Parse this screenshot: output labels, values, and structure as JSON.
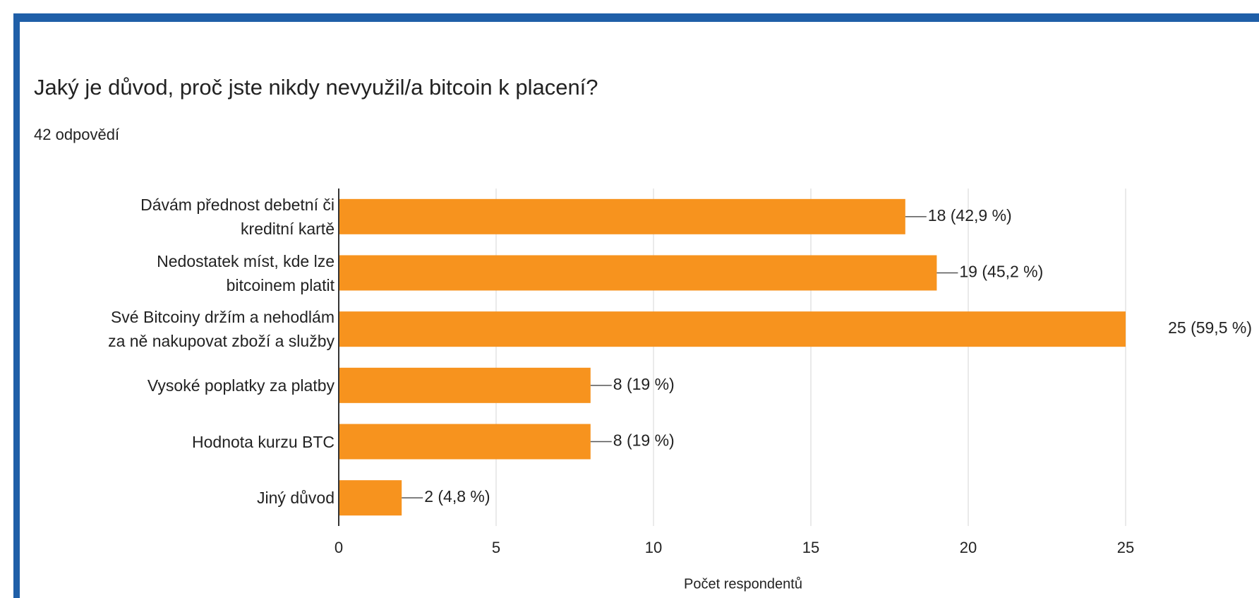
{
  "chart_data": {
    "type": "bar",
    "orientation": "horizontal",
    "title": "Jaký je důvod, proč jste nikdy nevyužil/a bitcoin k placení?",
    "subtitle": "42 odpovědí",
    "x_label": "Počet respondentů",
    "categories": [
      "Dávám přednost debetní či\nkreditní kartě",
      "Nedostatek míst, kde lze\nbitcoinem platit",
      "Své Bitcoiny držím a nehodlám\nza ně nakupovat zboží a služby",
      "Vysoké poplatky za platby",
      "Hodnota kurzu BTC",
      "Jiný důvod"
    ],
    "values": [
      18,
      19,
      25,
      8,
      8,
      2
    ],
    "value_labels": [
      "18 (42,9 %)",
      "19 (45,2 %)",
      "25 (59,5 %)",
      "8 (19 %)",
      "8 (19 %)",
      "2 (4,8 %)"
    ],
    "color": "#f7931e",
    "xlim": [
      0,
      25
    ],
    "xticks": [
      0,
      5,
      10,
      15,
      20,
      25
    ],
    "grid": true
  }
}
